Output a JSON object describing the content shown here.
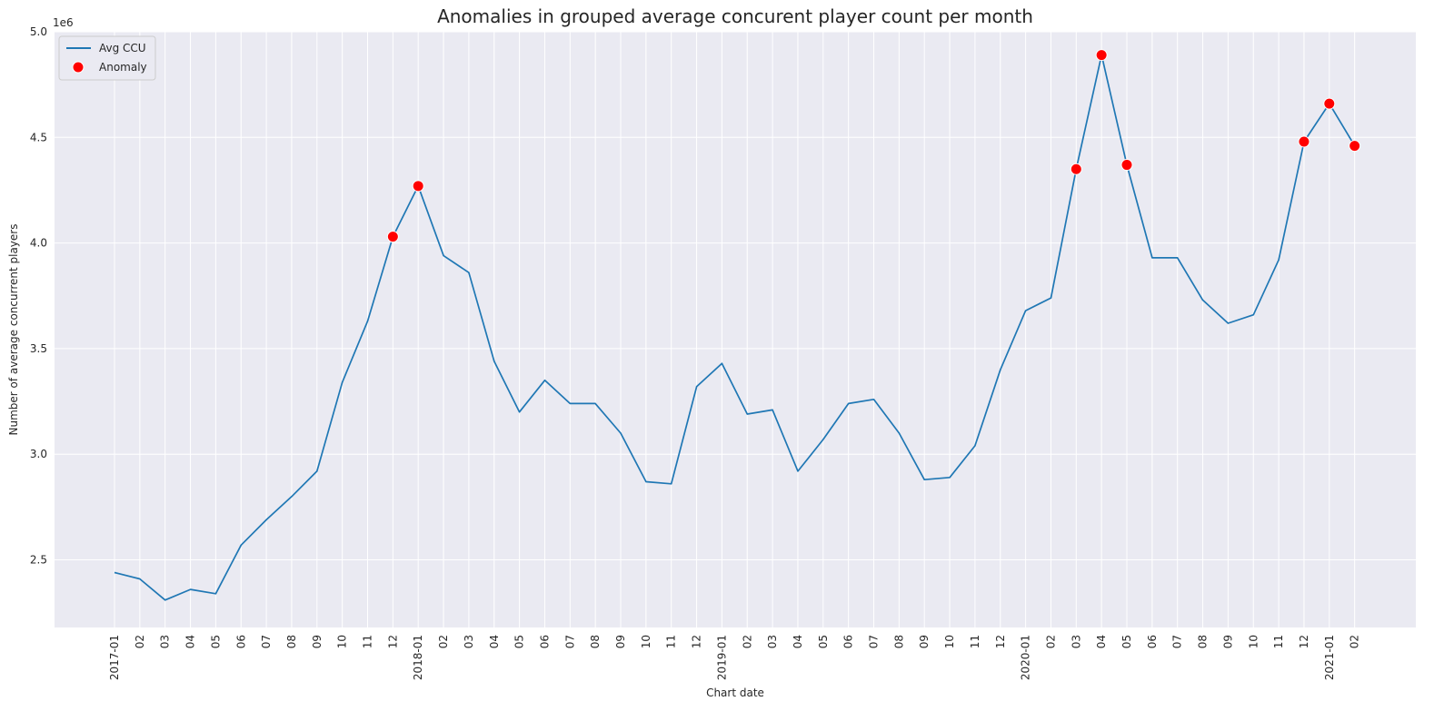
{
  "chart_data": {
    "type": "line",
    "title": "Anomalies in grouped average concurent player count per month",
    "xlabel": "Chart date",
    "ylabel": "Number of average concurrent players",
    "y_offset_label": "1e6",
    "ylim": [
      2.18,
      5.0
    ],
    "y_ticks": [
      2.5,
      3.0,
      3.5,
      4.0,
      4.5,
      5.0
    ],
    "y_tick_labels": [
      "2.5",
      "3.0",
      "3.5",
      "4.0",
      "4.5",
      "5.0"
    ],
    "x_tick_labels": [
      "2017-01",
      "02",
      "03",
      "04",
      "05",
      "06",
      "07",
      "08",
      "09",
      "10",
      "11",
      "12",
      "2018-01",
      "02",
      "03",
      "04",
      "05",
      "06",
      "07",
      "08",
      "09",
      "10",
      "11",
      "12",
      "2019-01",
      "02",
      "03",
      "04",
      "05",
      "06",
      "07",
      "08",
      "09",
      "10",
      "11",
      "12",
      "2020-01",
      "02",
      "03",
      "04",
      "05",
      "06",
      "07",
      "08",
      "09",
      "10",
      "11",
      "12",
      "2021-01",
      "02"
    ],
    "grid": true,
    "legend_position": "upper-left",
    "colors": {
      "line": "#1f77b4",
      "anomaly": "#ff0000",
      "plot_bg": "#eaeaf2",
      "grid": "#ffffff"
    },
    "series": [
      {
        "name": "Avg CCU",
        "kind": "line",
        "values": [
          2.44,
          2.41,
          2.31,
          2.36,
          2.34,
          2.57,
          2.69,
          2.8,
          2.92,
          3.34,
          3.63,
          4.03,
          4.27,
          3.94,
          3.86,
          3.44,
          3.2,
          3.35,
          3.24,
          3.24,
          3.1,
          2.87,
          2.86,
          3.32,
          3.43,
          3.19,
          3.21,
          2.92,
          3.07,
          3.24,
          3.26,
          3.1,
          2.88,
          2.89,
          3.04,
          3.4,
          3.68,
          3.74,
          4.35,
          4.89,
          4.37,
          3.93,
          3.93,
          3.73,
          3.62,
          3.66,
          3.92,
          4.48,
          4.66,
          4.46
        ]
      },
      {
        "name": "Anomaly",
        "kind": "scatter",
        "points": [
          {
            "x": "2017-12",
            "y": 4.03
          },
          {
            "x": "2018-01",
            "y": 4.27
          },
          {
            "x": "2020-03",
            "y": 4.35
          },
          {
            "x": "2020-04",
            "y": 4.89
          },
          {
            "x": "2020-05",
            "y": 4.37
          },
          {
            "x": "2020-12",
            "y": 4.48
          },
          {
            "x": "2021-01",
            "y": 4.66
          },
          {
            "x": "2021-02",
            "y": 4.46
          }
        ]
      }
    ]
  }
}
